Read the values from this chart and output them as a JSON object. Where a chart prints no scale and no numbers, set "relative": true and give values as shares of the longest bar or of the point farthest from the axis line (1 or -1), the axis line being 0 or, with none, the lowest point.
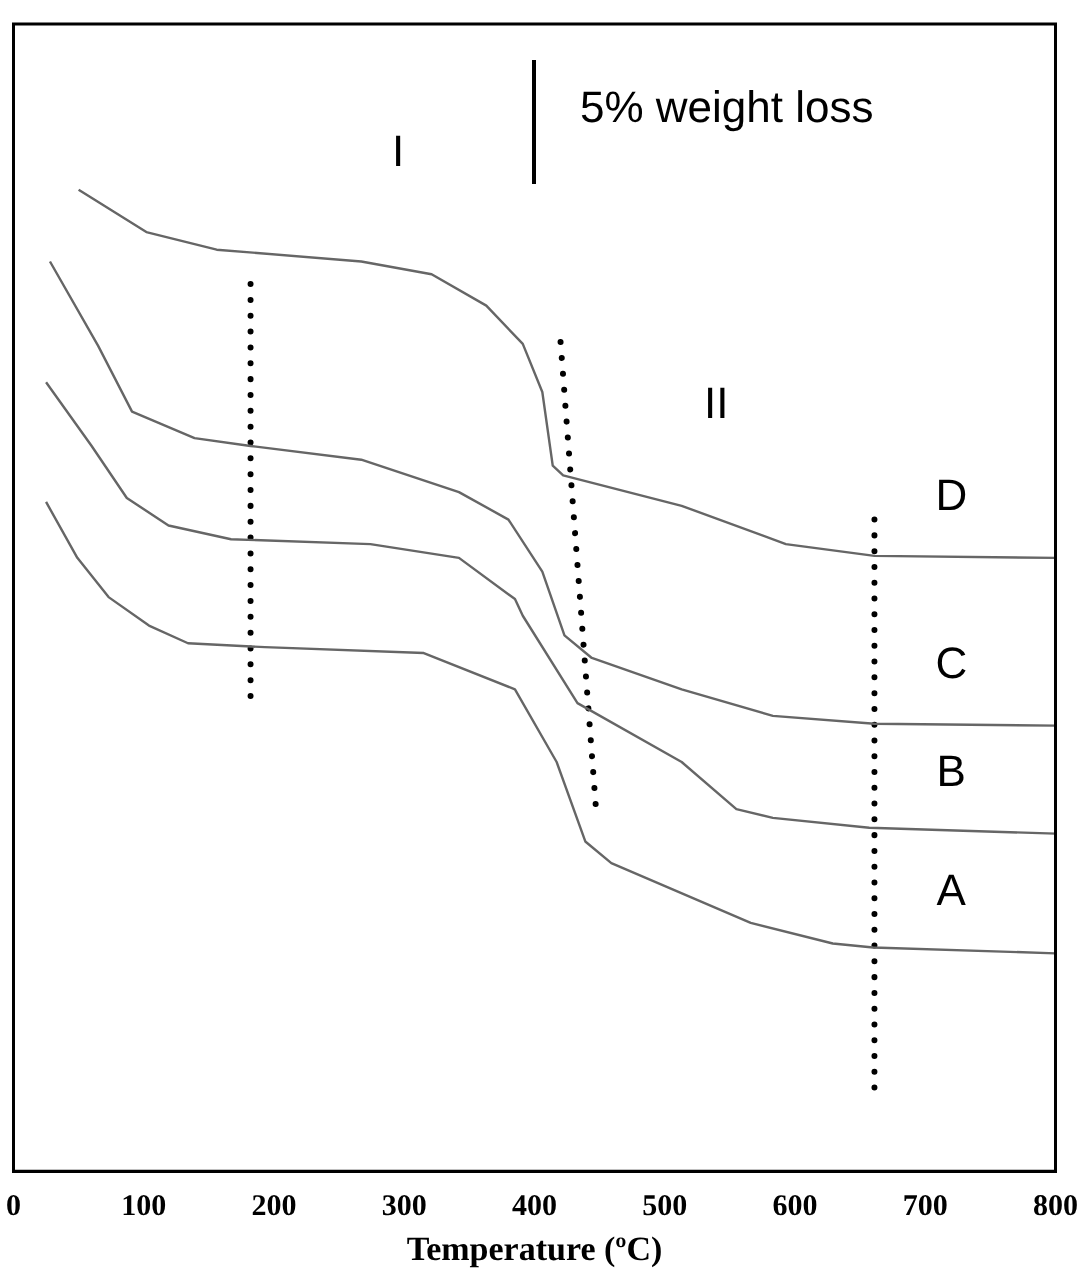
{
  "chart_data": {
    "type": "line",
    "relative": true,
    "xlabel": "Temperature (ºC)",
    "xlim": [
      0,
      800
    ],
    "xticks": [
      0,
      100,
      200,
      300,
      400,
      500,
      600,
      700,
      800
    ],
    "tick_labels": "x",
    "grid": false,
    "legend": false,
    "marker": "none",
    "line_style": "solid",
    "series": [
      {
        "name": "D",
        "color": "#666666",
        "x": [
          50,
          102,
          156,
          267,
          321,
          363,
          391,
          406,
          414,
          422,
          513,
          593,
          661,
          800
        ],
        "values": [
          1.0,
          0.957,
          0.939,
          0.927,
          0.914,
          0.882,
          0.843,
          0.794,
          0.719,
          0.709,
          0.678,
          0.639,
          0.627,
          0.625
        ]
      },
      {
        "name": "C",
        "color": "#666666",
        "x": [
          28,
          65,
          91,
          139,
          182,
          267,
          342,
          380,
          406,
          423,
          444,
          513,
          583,
          661,
          800
        ],
        "values": [
          0.927,
          0.841,
          0.774,
          0.747,
          0.739,
          0.725,
          0.692,
          0.664,
          0.611,
          0.546,
          0.523,
          0.491,
          0.464,
          0.456,
          0.454
        ]
      },
      {
        "name": "B",
        "color": "#666666",
        "x": [
          25,
          60,
          87,
          119,
          167,
          274,
          342,
          385,
          391,
          433,
          513,
          555,
          583,
          657,
          800
        ],
        "values": [
          0.804,
          0.739,
          0.686,
          0.658,
          0.644,
          0.639,
          0.625,
          0.583,
          0.566,
          0.477,
          0.417,
          0.369,
          0.36,
          0.35,
          0.344
        ]
      },
      {
        "name": "A",
        "color": "#666666",
        "x": [
          25,
          49,
          73,
          104,
          134,
          193,
          315,
          385,
          417,
          439,
          459,
          566,
          629,
          660,
          800
        ],
        "values": [
          0.682,
          0.625,
          0.585,
          0.556,
          0.538,
          0.534,
          0.528,
          0.491,
          0.417,
          0.336,
          0.314,
          0.253,
          0.232,
          0.228,
          0.222
        ]
      },
      {
        "color": "#000000",
        "line_style": "dotted",
        "x": [
          182,
          182
        ],
        "values": [
          0.904,
          0.483
        ]
      },
      {
        "color": "#000000",
        "line_style": "dotted",
        "x": [
          420,
          447
        ],
        "values": [
          0.845,
          0.373
        ]
      },
      {
        "color": "#000000",
        "line_style": "dotted",
        "x": [
          661,
          661
        ],
        "values": [
          0.664,
          0.084
        ]
      }
    ],
    "annotations": [
      "I",
      "II",
      "5% weight loss"
    ]
  }
}
